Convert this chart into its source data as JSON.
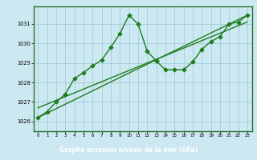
{
  "title": "Graphe pression niveau de la mer (hPa)",
  "line_color": "#1e7d1e",
  "marker_color": "#1e7d1e",
  "bg_color": "#cce8f0",
  "grid_color": "#9cc8d8",
  "border_color": "#2d6e2d",
  "title_bg": "#2d6e2d",
  "title_fg": "#ffffff",
  "ylim": [
    1025.5,
    1031.9
  ],
  "yticks": [
    1026,
    1027,
    1028,
    1029,
    1030,
    1031
  ],
  "xticks": [
    0,
    1,
    2,
    3,
    4,
    5,
    6,
    7,
    8,
    9,
    10,
    11,
    12,
    13,
    14,
    15,
    16,
    17,
    18,
    19,
    20,
    21,
    22,
    23
  ],
  "s1_x": [
    0,
    1,
    2,
    3,
    4,
    5,
    6,
    7,
    8,
    9,
    10,
    11,
    12,
    13
  ],
  "s1_y": [
    1026.2,
    1026.5,
    1027.0,
    1027.4,
    1028.2,
    1028.5,
    1028.85,
    1029.15,
    1029.8,
    1030.5,
    1031.45,
    1031.0,
    1029.6,
    1029.1
  ],
  "s2_x": [
    13,
    14,
    15,
    16,
    17,
    18,
    19,
    20,
    21,
    22,
    23
  ],
  "s2_y": [
    1029.1,
    1028.65,
    1028.65,
    1028.65,
    1029.05,
    1029.7,
    1030.1,
    1030.35,
    1031.0,
    1031.1,
    1031.45
  ],
  "trend1_x": [
    0,
    23
  ],
  "trend1_y": [
    1026.2,
    1031.45
  ],
  "trend2_x": [
    0,
    23
  ],
  "trend2_y": [
    1026.7,
    1031.1
  ],
  "marker_size": 2.8,
  "line_width": 1.0,
  "title_fontsize": 5.5,
  "tick_fontsize": 4.8
}
